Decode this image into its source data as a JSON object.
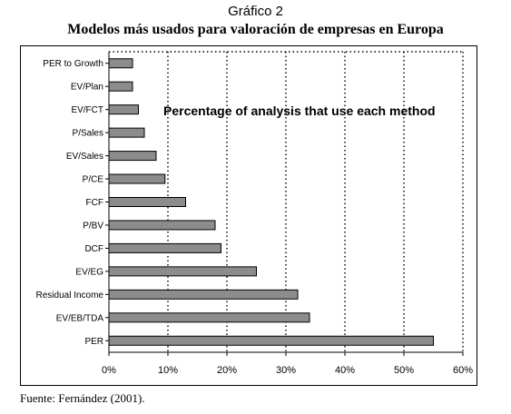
{
  "figure_label": "Gráfico 2",
  "title": "Modelos más usados para valoración de empresas en Europa",
  "source": "Fuente: Fernández (2001).",
  "chart_data": {
    "type": "bar",
    "orientation": "horizontal",
    "annotation": "Percentage of analysis that use each method",
    "categories": [
      "PER to Growth",
      "EV/Plan",
      "EV/FCT",
      "P/Sales",
      "EV/Sales",
      "P/CE",
      "FCF",
      "P/BV",
      "DCF",
      "EV/EG",
      "Residual Income",
      "EV/EB/TDA",
      "PER"
    ],
    "values": [
      4,
      4,
      5,
      6,
      8,
      9.5,
      13,
      18,
      19,
      25,
      32,
      34,
      55
    ],
    "xlim": [
      0,
      60
    ],
    "x_ticks": [
      "0%",
      "10%",
      "20%",
      "30%",
      "40%",
      "50%",
      "60%"
    ],
    "grid": "vertical dotted",
    "bar_color": "#8c8c8c"
  }
}
